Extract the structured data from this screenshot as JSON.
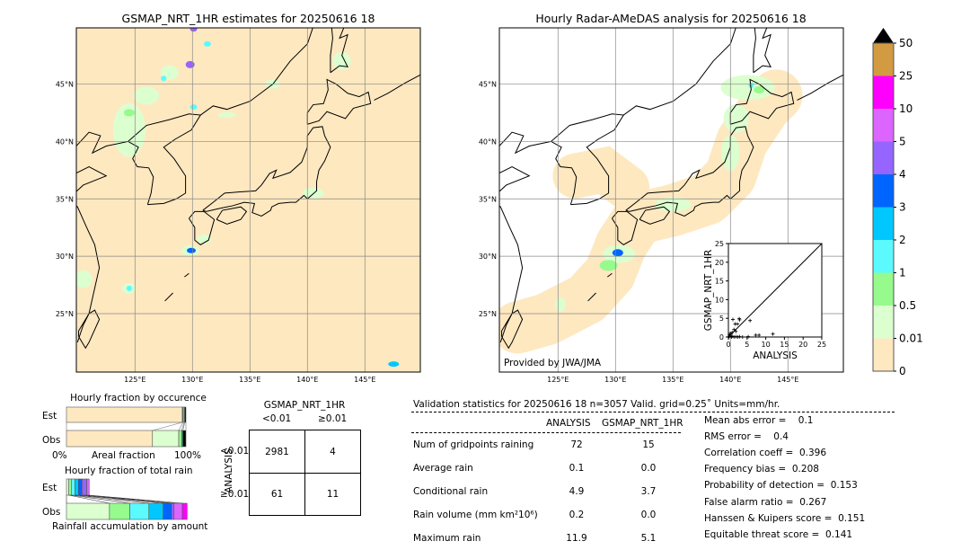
{
  "left_map": {
    "title": "GSMAP_NRT_1HR estimates for 20250616 18"
  },
  "right_map": {
    "title": "Hourly Radar-AMeDAS analysis for 20250616 18",
    "credit": "Provided by JWA/JMA"
  },
  "lon_ticks": [
    "125°E",
    "130°E",
    "135°E",
    "140°E",
    "145°E"
  ],
  "lat_ticks": [
    "45°N",
    "40°N",
    "35°N",
    "30°N",
    "25°N"
  ],
  "colorbar": {
    "labels": [
      "0",
      "0.01",
      "0.5",
      "1",
      "2",
      "3",
      "4",
      "5",
      "10",
      "25",
      "50"
    ],
    "colors": [
      "#fee8c0",
      "#dcffd0",
      "#96fa8c",
      "#5afaff",
      "#00c8ff",
      "#0064ff",
      "#9664ff",
      "#dc64ff",
      "#ff00ff",
      "#d29b41"
    ],
    "extend_color": "#000000"
  },
  "chart_data": [
    {
      "type": "scatter",
      "xlabel": "ANALYSIS",
      "ylabel": "GSMAP_NRT_1HR",
      "xlim": [
        0,
        25
      ],
      "ylim": [
        0,
        25
      ],
      "xticks": [
        "0",
        "5",
        "10",
        "15",
        "20",
        "25"
      ],
      "yticks": [
        "0",
        "5",
        "10",
        "15",
        "20",
        "25"
      ],
      "points": [
        [
          1.2,
          4.7
        ],
        [
          2.9,
          4.9
        ],
        [
          3.0,
          4.6
        ],
        [
          5.8,
          4.4
        ],
        [
          1.8,
          3.5
        ],
        [
          2.4,
          3.5
        ],
        [
          1.5,
          2.0
        ],
        [
          2.0,
          1.5
        ],
        [
          1.0,
          1.2
        ],
        [
          0.5,
          1.0
        ],
        [
          0.3,
          0.6
        ],
        [
          7.3,
          0.5
        ],
        [
          8.2,
          0.5
        ],
        [
          11.9,
          0.8
        ],
        [
          5.3,
          0.1
        ],
        [
          1.0,
          0.2
        ],
        [
          2.0,
          0.1
        ],
        [
          3.0,
          0.1
        ],
        [
          3.8,
          0.0
        ],
        [
          0.5,
          0.3
        ],
        [
          0.8,
          0.0
        ],
        [
          1.5,
          0.0
        ],
        [
          2.5,
          0.0
        ],
        [
          0.2,
          0.1
        ]
      ]
    },
    {
      "type": "bar",
      "title": "Hourly fraction by occurence",
      "xlabel": "Areal fraction",
      "xtick_left": "0%",
      "xtick_right": "100%",
      "categories": [
        "Est",
        "Obs"
      ],
      "series": [
        {
          "name": "Est",
          "fractions": [
            0.97,
            0.005,
            0.01,
            0.005,
            0.01
          ]
        },
        {
          "name": "Obs",
          "fractions": [
            0.72,
            0.22,
            0.025,
            0.01,
            0.025
          ]
        }
      ]
    },
    {
      "type": "bar",
      "title": "Hourly fraction of total rain",
      "xlabel": "Rainfall accumulation by amount",
      "categories": [
        "Est",
        "Obs"
      ],
      "series": [
        {
          "name": "Est",
          "fractions": [
            0.02,
            0.02,
            0.03,
            0.03,
            0.03,
            0.04,
            0.02
          ]
        },
        {
          "name": "Obs",
          "fractions": [
            0.36,
            0.17,
            0.16,
            0.12,
            0.07,
            0.02,
            0.07,
            0.04
          ]
        }
      ]
    },
    {
      "type": "table",
      "title": "GSMAP_NRT_1HR",
      "col_headers": [
        "<0.01",
        "≥0.01"
      ],
      "row_label": "ANALYSIS",
      "row_headers": [
        "<0.01",
        "≥0.01"
      ],
      "cells": [
        [
          "2981",
          "4"
        ],
        [
          "61",
          "11"
        ]
      ]
    }
  ],
  "stats": {
    "header": "Validation statistics for 20250616 18  n=3057 Valid. grid=0.25˚ Units=mm/hr.",
    "columns": [
      "ANALYSIS",
      "GSMAP_NRT_1HR"
    ],
    "rows": [
      {
        "label": "Num of gridpoints raining",
        "a": "72",
        "g": "15"
      },
      {
        "label": "Average rain",
        "a": "0.1",
        "g": "0.0"
      },
      {
        "label": "Conditional rain",
        "a": "4.9",
        "g": "3.7"
      },
      {
        "label": "Rain volume (mm km²10⁶)",
        "a": "0.2",
        "g": "0.0"
      },
      {
        "label": "Maximum rain",
        "a": "11.9",
        "g": "5.1"
      }
    ],
    "scores": [
      "Mean abs error =    0.1",
      "RMS error =    0.4",
      "Correlation coeff =  0.396",
      "Frequency bias =  0.208",
      "Probability of detection =  0.153",
      "False alarm ratio =  0.267",
      "Hanssen & Kuipers score =  0.151",
      "Equitable threat score =  0.141"
    ]
  }
}
